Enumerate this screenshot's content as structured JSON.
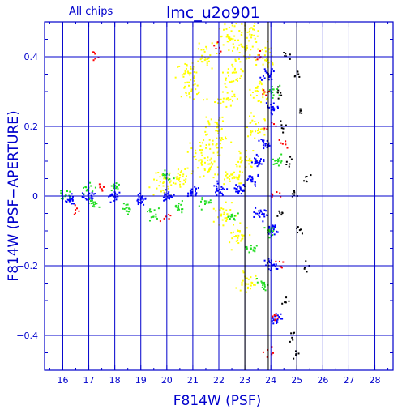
{
  "chart_data": {
    "type": "scatter",
    "title": "lmc_u2o901",
    "subtitle": "All chips",
    "xlabel": "F814W (PSF)",
    "ylabel": "F814W (PSF−APERTURE)",
    "xlim": [
      15.3,
      28.7
    ],
    "ylim": [
      -0.5,
      0.5
    ],
    "x_ticks": [
      16,
      17,
      18,
      19,
      20,
      21,
      22,
      23,
      24,
      25,
      26,
      27,
      28
    ],
    "y_ticks": [
      -0.4,
      -0.2,
      0,
      0.2,
      0.4
    ],
    "y_tick_labels": [
      "−0.4",
      "−0.2",
      "0",
      "0.2",
      "0.4"
    ],
    "grid": true,
    "reference_lines_x": [
      23.0,
      23.9,
      25.0
    ],
    "colors": {
      "axis": "#0000cc",
      "grid": "#0000cc",
      "title": "#0000cc",
      "yellow": "#ffff00",
      "blue": "#0000ff",
      "green": "#22dd22",
      "red": "#ff0000",
      "black": "#000000"
    },
    "series_note_free": true,
    "series": [
      {
        "color": "yellow",
        "values": [
          [
            20.5,
            0.05
          ],
          [
            21.2,
            0.12
          ],
          [
            21.8,
            0.2
          ],
          [
            22.3,
            0.28
          ],
          [
            22.6,
            0.35
          ],
          [
            22.9,
            0.42
          ],
          [
            23.2,
            0.47
          ],
          [
            21.6,
            0.08
          ],
          [
            22.0,
            0.15
          ],
          [
            22.5,
            0.05
          ],
          [
            23.0,
            0.1
          ],
          [
            23.4,
            0.2
          ],
          [
            22.2,
            -0.05
          ],
          [
            22.8,
            -0.12
          ],
          [
            23.1,
            -0.25
          ],
          [
            21.0,
            0.3
          ],
          [
            20.8,
            0.36
          ],
          [
            22.4,
            0.46
          ],
          [
            23.6,
            0.3
          ],
          [
            19.8,
            0.04
          ],
          [
            21.4,
            0.4
          ],
          [
            23.8,
            0.4
          ]
        ]
      },
      {
        "color": "blue",
        "values": [
          [
            16.3,
            -0.01
          ],
          [
            17.0,
            0.0
          ],
          [
            18.0,
            0.0
          ],
          [
            19.0,
            -0.01
          ],
          [
            20.0,
            0.0
          ],
          [
            21.0,
            0.01
          ],
          [
            22.0,
            0.02
          ],
          [
            22.8,
            0.02
          ],
          [
            23.3,
            0.05
          ],
          [
            23.6,
            -0.05
          ],
          [
            23.8,
            0.15
          ],
          [
            24.0,
            0.25
          ],
          [
            24.0,
            -0.2
          ],
          [
            24.2,
            -0.35
          ],
          [
            23.9,
            0.35
          ],
          [
            24.1,
            -0.1
          ],
          [
            23.5,
            0.1
          ]
        ]
      },
      {
        "color": "green",
        "values": [
          [
            16.1,
            0.0
          ],
          [
            17.2,
            -0.02
          ],
          [
            18.5,
            -0.04
          ],
          [
            19.5,
            -0.05
          ],
          [
            20.5,
            -0.03
          ],
          [
            21.5,
            -0.02
          ],
          [
            22.5,
            -0.06
          ],
          [
            23.2,
            -0.15
          ],
          [
            23.7,
            -0.25
          ],
          [
            24.0,
            -0.1
          ],
          [
            24.3,
            0.1
          ],
          [
            24.1,
            0.3
          ],
          [
            20.0,
            0.06
          ],
          [
            18.0,
            0.03
          ],
          [
            17.0,
            0.02
          ]
        ]
      },
      {
        "color": "red",
        "values": [
          [
            16.5,
            -0.04
          ],
          [
            17.5,
            0.02
          ],
          [
            20.0,
            -0.06
          ],
          [
            23.5,
            0.4
          ],
          [
            23.8,
            0.3
          ],
          [
            24.0,
            0.2
          ],
          [
            24.2,
            0.0
          ],
          [
            24.3,
            -0.2
          ],
          [
            24.1,
            -0.35
          ],
          [
            23.9,
            -0.45
          ],
          [
            24.5,
            0.15
          ],
          [
            17.2,
            0.4
          ],
          [
            22.0,
            0.42
          ]
        ]
      },
      {
        "color": "black",
        "values": [
          [
            24.3,
            0.3
          ],
          [
            24.5,
            0.2
          ],
          [
            24.7,
            0.1
          ],
          [
            24.9,
            0.0
          ],
          [
            25.1,
            -0.1
          ],
          [
            25.3,
            -0.2
          ],
          [
            24.6,
            -0.3
          ],
          [
            24.8,
            -0.4
          ],
          [
            25.0,
            0.35
          ],
          [
            25.2,
            0.25
          ],
          [
            24.4,
            -0.05
          ],
          [
            25.4,
            0.05
          ],
          [
            24.6,
            0.4
          ],
          [
            25.0,
            -0.45
          ]
        ]
      }
    ]
  }
}
